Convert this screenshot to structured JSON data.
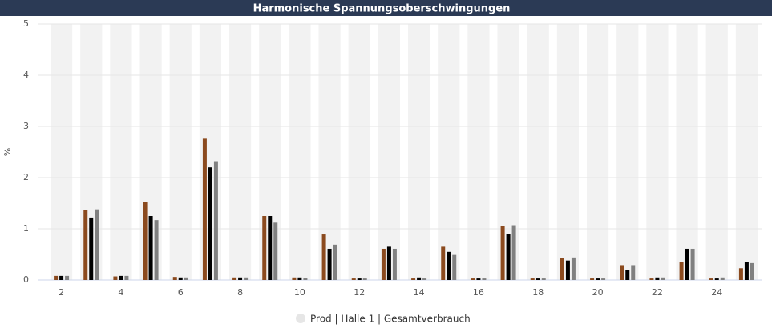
{
  "chart_data": {
    "type": "bar",
    "title": "Harmonische Spannungsoberschwingungen",
    "y_label": "%",
    "categories": [
      2,
      null,
      4,
      null,
      6,
      null,
      8,
      null,
      10,
      null,
      12,
      null,
      14,
      null,
      16,
      null,
      18,
      null,
      20,
      null,
      22,
      null,
      24,
      null
    ],
    "series": [
      {
        "color": "#8b4a1e",
        "values": [
          0.08,
          1.37,
          0.07,
          1.53,
          0.06,
          2.76,
          0.05,
          1.25,
          0.05,
          0.89,
          0.03,
          0.61,
          0.03,
          0.65,
          0.03,
          1.05,
          0.03,
          0.43,
          0.03,
          0.29,
          0.03,
          0.35,
          0.03,
          0.23
        ]
      },
      {
        "color": "#000000",
        "values": [
          0.08,
          1.22,
          0.08,
          1.25,
          0.05,
          2.2,
          0.05,
          1.25,
          0.05,
          0.61,
          0.03,
          0.65,
          0.05,
          0.55,
          0.03,
          0.9,
          0.03,
          0.38,
          0.03,
          0.2,
          0.05,
          0.61,
          0.03,
          0.35
        ]
      },
      {
        "color": "#808080",
        "values": [
          0.08,
          1.38,
          0.08,
          1.17,
          0.05,
          2.32,
          0.05,
          1.12,
          0.04,
          0.69,
          0.03,
          0.61,
          0.03,
          0.49,
          0.03,
          1.07,
          0.03,
          0.44,
          0.03,
          0.29,
          0.05,
          0.61,
          0.05,
          0.33
        ]
      }
    ],
    "legend": "Prod | Halle 1 | Gesamtverbrauch",
    "ylim": [
      0,
      5
    ],
    "yticks": [
      0,
      1,
      2,
      3,
      4,
      5
    ],
    "grid": true,
    "band_color": "#f2f2f2"
  }
}
